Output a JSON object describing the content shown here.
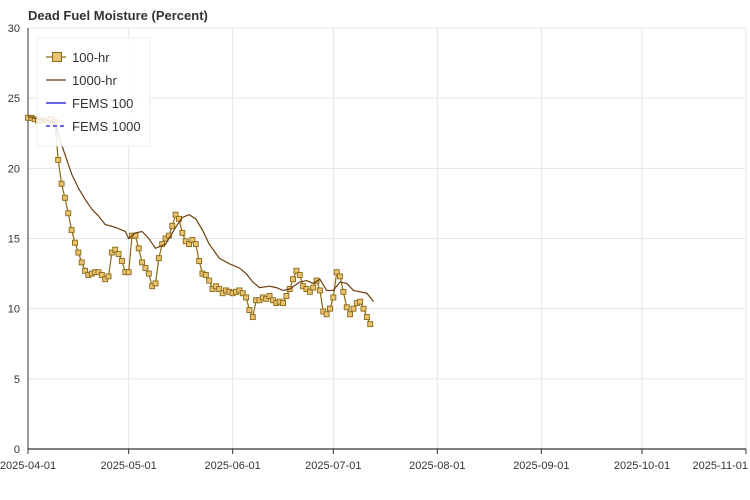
{
  "chart_data": {
    "type": "line",
    "title": "Dead Fuel Moisture (Percent)",
    "xlabel": "",
    "ylabel": "",
    "xlim": [
      "2025-04-01",
      "2025-11-01"
    ],
    "ylim": [
      0,
      30
    ],
    "x_ticks": [
      "2025-04-01",
      "2025-05-01",
      "2025-06-01",
      "2025-07-01",
      "2025-08-01",
      "2025-09-01",
      "2025-10-01",
      "2025-11-01"
    ],
    "y_ticks": [
      0,
      5,
      10,
      15,
      20,
      25,
      30
    ],
    "grid": true,
    "legend_position": "top-left",
    "series": [
      {
        "name": "100-hr",
        "color": "#8b6914",
        "marker_fill": "#e8c270",
        "marker": "square",
        "points": [
          [
            "2025-04-01",
            23.6
          ],
          [
            "2025-04-02",
            23.6
          ],
          [
            "2025-04-03",
            23.5
          ],
          [
            "2025-04-04",
            23.4
          ],
          [
            "2025-04-05",
            23.4
          ],
          [
            "2025-04-06",
            23.4
          ],
          [
            "2025-04-07",
            23.4
          ],
          [
            "2025-04-08",
            23.5
          ],
          [
            "2025-04-09",
            23.3
          ],
          [
            "2025-04-10",
            20.6
          ],
          [
            "2025-04-11",
            18.9
          ],
          [
            "2025-04-12",
            17.9
          ],
          [
            "2025-04-13",
            16.8
          ],
          [
            "2025-04-14",
            15.6
          ],
          [
            "2025-04-15",
            14.7
          ],
          [
            "2025-04-16",
            14.0
          ],
          [
            "2025-04-17",
            13.3
          ],
          [
            "2025-04-18",
            12.7
          ],
          [
            "2025-04-19",
            12.4
          ],
          [
            "2025-04-20",
            12.5
          ],
          [
            "2025-04-21",
            12.6
          ],
          [
            "2025-04-22",
            12.6
          ],
          [
            "2025-04-23",
            12.4
          ],
          [
            "2025-04-24",
            12.1
          ],
          [
            "2025-04-25",
            12.3
          ],
          [
            "2025-04-26",
            14.0
          ],
          [
            "2025-04-27",
            14.2
          ],
          [
            "2025-04-28",
            13.9
          ],
          [
            "2025-04-29",
            13.4
          ],
          [
            "2025-04-30",
            12.6
          ],
          [
            "2025-05-01",
            12.6
          ],
          [
            "2025-05-02",
            15.2
          ],
          [
            "2025-05-03",
            15.2
          ],
          [
            "2025-05-04",
            14.3
          ],
          [
            "2025-05-05",
            13.3
          ],
          [
            "2025-05-06",
            12.9
          ],
          [
            "2025-05-07",
            12.5
          ],
          [
            "2025-05-08",
            11.6
          ],
          [
            "2025-05-09",
            11.8
          ],
          [
            "2025-05-10",
            13.6
          ],
          [
            "2025-05-11",
            14.6
          ],
          [
            "2025-05-12",
            15.0
          ],
          [
            "2025-05-13",
            15.2
          ],
          [
            "2025-05-14",
            15.9
          ],
          [
            "2025-05-15",
            16.7
          ],
          [
            "2025-05-16",
            16.4
          ],
          [
            "2025-05-17",
            15.4
          ],
          [
            "2025-05-18",
            14.8
          ],
          [
            "2025-05-19",
            14.6
          ],
          [
            "2025-05-20",
            14.9
          ],
          [
            "2025-05-21",
            14.6
          ],
          [
            "2025-05-22",
            13.4
          ],
          [
            "2025-05-23",
            12.5
          ],
          [
            "2025-05-24",
            12.4
          ],
          [
            "2025-05-25",
            12.0
          ],
          [
            "2025-05-26",
            11.4
          ],
          [
            "2025-05-27",
            11.6
          ],
          [
            "2025-05-28",
            11.4
          ],
          [
            "2025-05-29",
            11.1
          ],
          [
            "2025-05-30",
            11.3
          ],
          [
            "2025-05-31",
            11.2
          ],
          [
            "2025-06-01",
            11.1
          ],
          [
            "2025-06-02",
            11.2
          ],
          [
            "2025-06-03",
            11.3
          ],
          [
            "2025-06-04",
            11.1
          ],
          [
            "2025-06-05",
            10.8
          ],
          [
            "2025-06-06",
            9.9
          ],
          [
            "2025-06-07",
            9.4
          ],
          [
            "2025-06-08",
            10.6
          ],
          [
            "2025-06-09",
            10.6
          ],
          [
            "2025-06-10",
            10.8
          ],
          [
            "2025-06-11",
            10.7
          ],
          [
            "2025-06-12",
            10.9
          ],
          [
            "2025-06-13",
            10.6
          ],
          [
            "2025-06-14",
            10.4
          ],
          [
            "2025-06-15",
            10.5
          ],
          [
            "2025-06-16",
            10.4
          ],
          [
            "2025-06-17",
            10.9
          ],
          [
            "2025-06-18",
            11.4
          ],
          [
            "2025-06-19",
            12.1
          ],
          [
            "2025-06-20",
            12.7
          ],
          [
            "2025-06-21",
            12.4
          ],
          [
            "2025-06-22",
            11.6
          ],
          [
            "2025-06-23",
            11.4
          ],
          [
            "2025-06-24",
            11.2
          ],
          [
            "2025-06-25",
            11.5
          ],
          [
            "2025-06-26",
            12.0
          ],
          [
            "2025-06-27",
            11.3
          ],
          [
            "2025-06-28",
            9.8
          ],
          [
            "2025-06-29",
            9.6
          ],
          [
            "2025-06-30",
            10.0
          ],
          [
            "2025-07-01",
            10.8
          ],
          [
            "2025-07-02",
            12.6
          ],
          [
            "2025-07-03",
            12.3
          ],
          [
            "2025-07-04",
            11.2
          ],
          [
            "2025-07-05",
            10.1
          ],
          [
            "2025-07-06",
            9.6
          ],
          [
            "2025-07-07",
            10.0
          ],
          [
            "2025-07-08",
            10.4
          ],
          [
            "2025-07-09",
            10.5
          ],
          [
            "2025-07-10",
            10.0
          ],
          [
            "2025-07-11",
            9.4
          ],
          [
            "2025-07-12",
            8.9
          ]
        ]
      },
      {
        "name": "1000-hr",
        "color": "#6b3d0d",
        "points": [
          [
            "2025-04-01",
            23.7
          ],
          [
            "2025-04-04",
            23.5
          ],
          [
            "2025-04-07",
            23.4
          ],
          [
            "2025-04-09",
            23.3
          ],
          [
            "2025-04-10",
            22.4
          ],
          [
            "2025-04-12",
            21.0
          ],
          [
            "2025-04-14",
            19.6
          ],
          [
            "2025-04-16",
            18.6
          ],
          [
            "2025-04-18",
            17.8
          ],
          [
            "2025-04-20",
            17.1
          ],
          [
            "2025-04-22",
            16.6
          ],
          [
            "2025-04-24",
            16.0
          ],
          [
            "2025-04-27",
            15.8
          ],
          [
            "2025-04-30",
            15.5
          ],
          [
            "2025-05-01",
            15.0
          ],
          [
            "2025-05-03",
            15.4
          ],
          [
            "2025-05-05",
            15.5
          ],
          [
            "2025-05-07",
            15.0
          ],
          [
            "2025-05-09",
            14.3
          ],
          [
            "2025-05-12",
            14.6
          ],
          [
            "2025-05-15",
            15.8
          ],
          [
            "2025-05-17",
            16.5
          ],
          [
            "2025-05-19",
            16.7
          ],
          [
            "2025-05-21",
            16.4
          ],
          [
            "2025-05-23",
            15.6
          ],
          [
            "2025-05-25",
            14.6
          ],
          [
            "2025-05-28",
            13.6
          ],
          [
            "2025-05-31",
            13.2
          ],
          [
            "2025-06-03",
            12.9
          ],
          [
            "2025-06-05",
            12.5
          ],
          [
            "2025-06-07",
            11.9
          ],
          [
            "2025-06-09",
            11.5
          ],
          [
            "2025-06-12",
            11.6
          ],
          [
            "2025-06-14",
            11.5
          ],
          [
            "2025-06-16",
            11.3
          ],
          [
            "2025-06-18",
            11.4
          ],
          [
            "2025-06-21",
            11.9
          ],
          [
            "2025-06-23",
            12.0
          ],
          [
            "2025-06-25",
            11.8
          ],
          [
            "2025-06-27",
            12.1
          ],
          [
            "2025-06-29",
            11.3
          ],
          [
            "2025-07-01",
            11.3
          ],
          [
            "2025-07-03",
            11.9
          ],
          [
            "2025-07-05",
            11.8
          ],
          [
            "2025-07-07",
            11.3
          ],
          [
            "2025-07-09",
            11.2
          ],
          [
            "2025-07-11",
            11.1
          ],
          [
            "2025-07-13",
            10.5
          ]
        ]
      },
      {
        "name": "FEMS 100",
        "color": "#6666ee",
        "dash": "solid",
        "points": []
      },
      {
        "name": "FEMS 1000",
        "color": "#6666ee",
        "dash": "dashed",
        "points": []
      }
    ]
  }
}
